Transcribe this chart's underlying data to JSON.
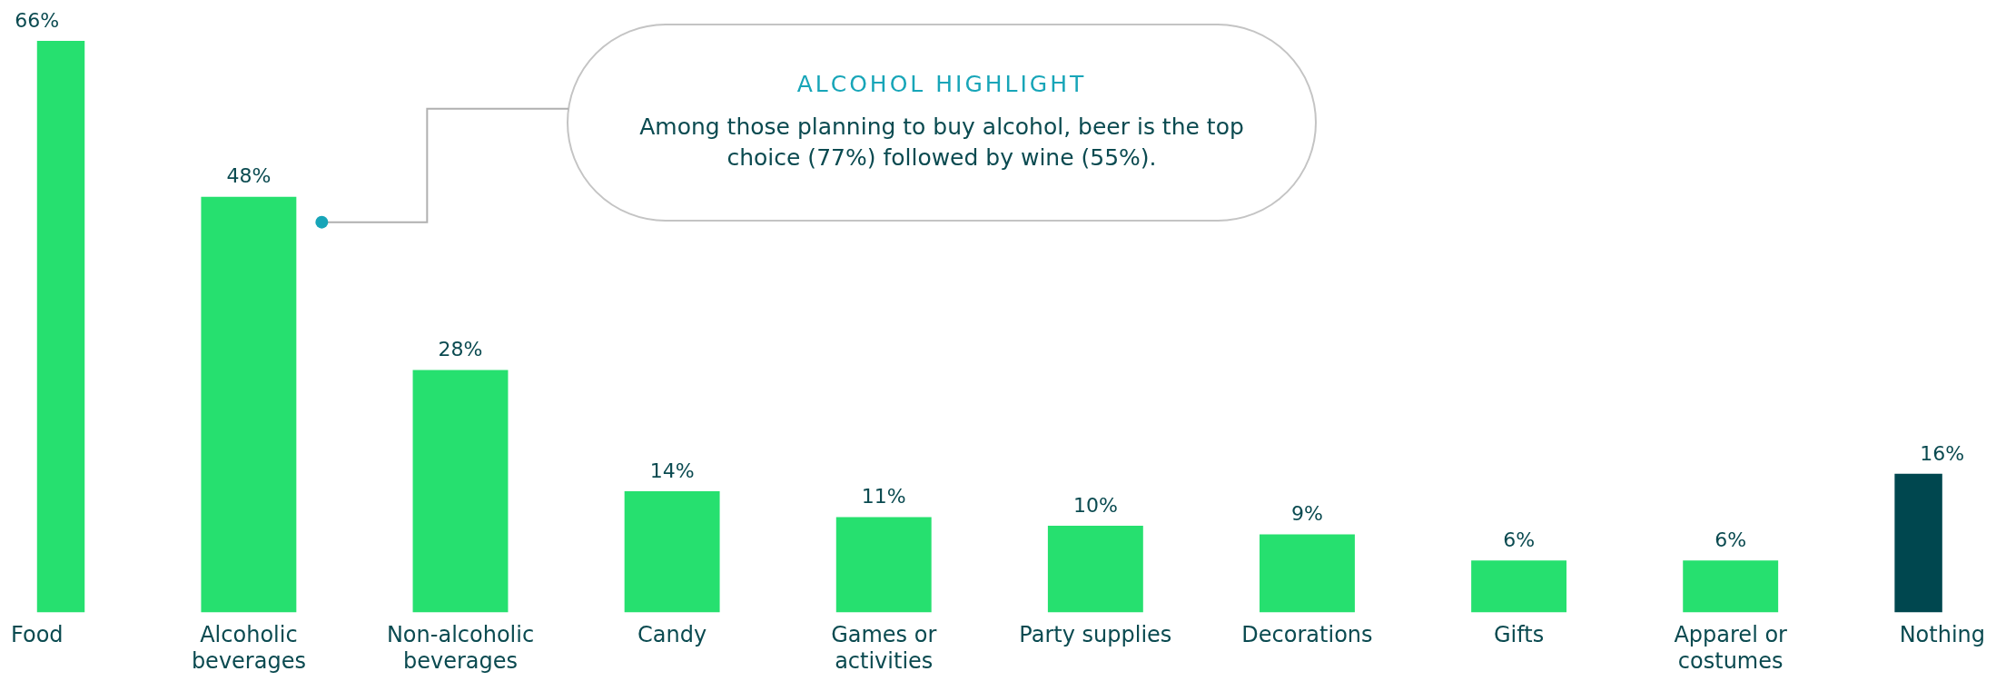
{
  "chart_data": {
    "type": "bar",
    "categories": [
      "Food",
      "Alcoholic beverages",
      "Non-alcoholic beverages",
      "Candy",
      "Games or activities",
      "Party supplies",
      "Decorations",
      "Gifts",
      "Apparel or costumes",
      "Nothing"
    ],
    "values": [
      66,
      48,
      28,
      14,
      11,
      10,
      9,
      6,
      6,
      16
    ],
    "colors": [
      "#26e06f",
      "#26e06f",
      "#26e06f",
      "#26e06f",
      "#26e06f",
      "#26e06f",
      "#26e06f",
      "#26e06f",
      "#26e06f",
      "#00474f"
    ],
    "value_labels": [
      "66%",
      "48%",
      "28%",
      "14%",
      "11%",
      "10%",
      "9%",
      "6%",
      "6%",
      "16%"
    ],
    "annotations": [
      "ALCOHOL HIGHLIGHT",
      "Among those planning to buy alcohol, beer is the top choice (77%) followed by wine (55%)."
    ],
    "tick_labels": "x",
    "grid": false,
    "legend": false
  }
}
